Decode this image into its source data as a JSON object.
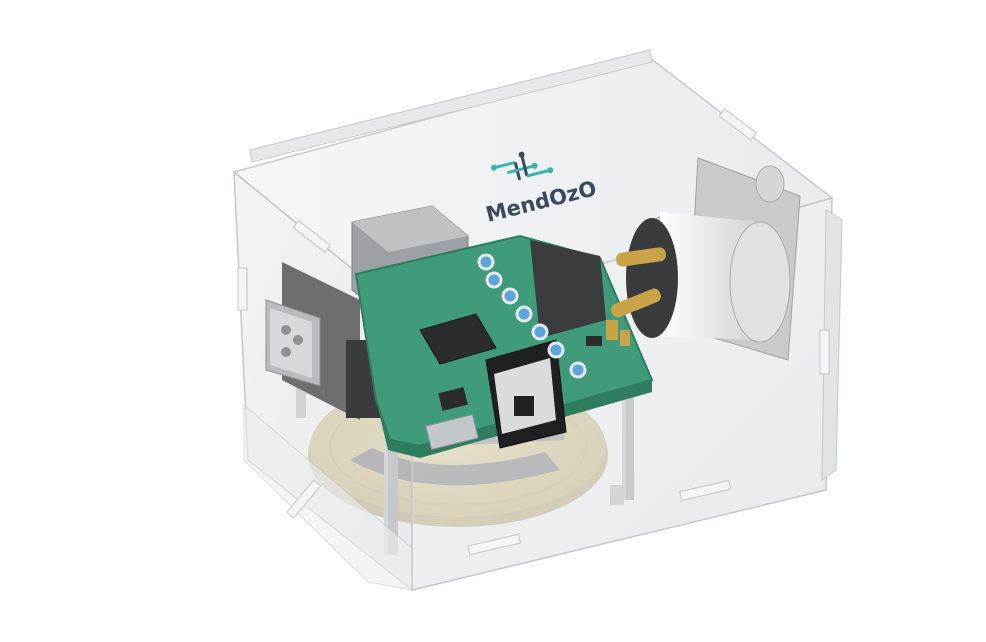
{
  "logo": {
    "text": "MendOzO",
    "text_color": "#3a4a5c",
    "icon_name": "circuit-traces-icon",
    "icon_colors": [
      "#38b5b0",
      "#3a4a5c"
    ]
  },
  "colors": {
    "enclosure_face": "#e9eaec",
    "enclosure_edge": "#c9ccd1",
    "pcb": "#3f9b7a",
    "pcb_dark": "#2f7c5f",
    "speaker_gold": "#c8a63a",
    "speaker_dark": "#2a2a2a",
    "connector_grey": "#8c8f93",
    "button_blue": "#5aa6d9",
    "xlr_white": "#eceeee"
  }
}
